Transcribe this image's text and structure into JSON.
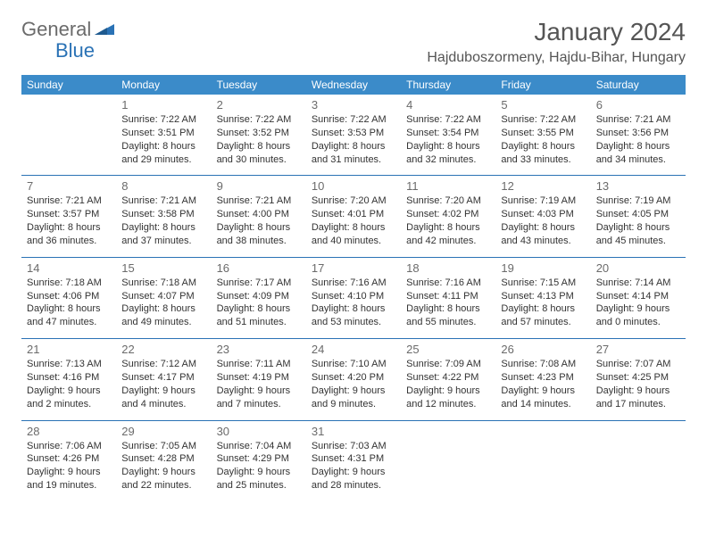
{
  "logo": {
    "gray": "General",
    "blue": "Blue"
  },
  "title": "January 2024",
  "location": "Hajduboszormeny, Hajdu-Bihar, Hungary",
  "header_bg": "#3b8bc9",
  "border_color": "#2a72b5",
  "weekdays": [
    "Sunday",
    "Monday",
    "Tuesday",
    "Wednesday",
    "Thursday",
    "Friday",
    "Saturday"
  ],
  "weeks": [
    [
      null,
      {
        "n": "1",
        "sr": "7:22 AM",
        "ss": "3:51 PM",
        "dl": "8 hours and 29 minutes."
      },
      {
        "n": "2",
        "sr": "7:22 AM",
        "ss": "3:52 PM",
        "dl": "8 hours and 30 minutes."
      },
      {
        "n": "3",
        "sr": "7:22 AM",
        "ss": "3:53 PM",
        "dl": "8 hours and 31 minutes."
      },
      {
        "n": "4",
        "sr": "7:22 AM",
        "ss": "3:54 PM",
        "dl": "8 hours and 32 minutes."
      },
      {
        "n": "5",
        "sr": "7:22 AM",
        "ss": "3:55 PM",
        "dl": "8 hours and 33 minutes."
      },
      {
        "n": "6",
        "sr": "7:21 AM",
        "ss": "3:56 PM",
        "dl": "8 hours and 34 minutes."
      }
    ],
    [
      {
        "n": "7",
        "sr": "7:21 AM",
        "ss": "3:57 PM",
        "dl": "8 hours and 36 minutes."
      },
      {
        "n": "8",
        "sr": "7:21 AM",
        "ss": "3:58 PM",
        "dl": "8 hours and 37 minutes."
      },
      {
        "n": "9",
        "sr": "7:21 AM",
        "ss": "4:00 PM",
        "dl": "8 hours and 38 minutes."
      },
      {
        "n": "10",
        "sr": "7:20 AM",
        "ss": "4:01 PM",
        "dl": "8 hours and 40 minutes."
      },
      {
        "n": "11",
        "sr": "7:20 AM",
        "ss": "4:02 PM",
        "dl": "8 hours and 42 minutes."
      },
      {
        "n": "12",
        "sr": "7:19 AM",
        "ss": "4:03 PM",
        "dl": "8 hours and 43 minutes."
      },
      {
        "n": "13",
        "sr": "7:19 AM",
        "ss": "4:05 PM",
        "dl": "8 hours and 45 minutes."
      }
    ],
    [
      {
        "n": "14",
        "sr": "7:18 AM",
        "ss": "4:06 PM",
        "dl": "8 hours and 47 minutes."
      },
      {
        "n": "15",
        "sr": "7:18 AM",
        "ss": "4:07 PM",
        "dl": "8 hours and 49 minutes."
      },
      {
        "n": "16",
        "sr": "7:17 AM",
        "ss": "4:09 PM",
        "dl": "8 hours and 51 minutes."
      },
      {
        "n": "17",
        "sr": "7:16 AM",
        "ss": "4:10 PM",
        "dl": "8 hours and 53 minutes."
      },
      {
        "n": "18",
        "sr": "7:16 AM",
        "ss": "4:11 PM",
        "dl": "8 hours and 55 minutes."
      },
      {
        "n": "19",
        "sr": "7:15 AM",
        "ss": "4:13 PM",
        "dl": "8 hours and 57 minutes."
      },
      {
        "n": "20",
        "sr": "7:14 AM",
        "ss": "4:14 PM",
        "dl": "9 hours and 0 minutes."
      }
    ],
    [
      {
        "n": "21",
        "sr": "7:13 AM",
        "ss": "4:16 PM",
        "dl": "9 hours and 2 minutes."
      },
      {
        "n": "22",
        "sr": "7:12 AM",
        "ss": "4:17 PM",
        "dl": "9 hours and 4 minutes."
      },
      {
        "n": "23",
        "sr": "7:11 AM",
        "ss": "4:19 PM",
        "dl": "9 hours and 7 minutes."
      },
      {
        "n": "24",
        "sr": "7:10 AM",
        "ss": "4:20 PM",
        "dl": "9 hours and 9 minutes."
      },
      {
        "n": "25",
        "sr": "7:09 AM",
        "ss": "4:22 PM",
        "dl": "9 hours and 12 minutes."
      },
      {
        "n": "26",
        "sr": "7:08 AM",
        "ss": "4:23 PM",
        "dl": "9 hours and 14 minutes."
      },
      {
        "n": "27",
        "sr": "7:07 AM",
        "ss": "4:25 PM",
        "dl": "9 hours and 17 minutes."
      }
    ],
    [
      {
        "n": "28",
        "sr": "7:06 AM",
        "ss": "4:26 PM",
        "dl": "9 hours and 19 minutes."
      },
      {
        "n": "29",
        "sr": "7:05 AM",
        "ss": "4:28 PM",
        "dl": "9 hours and 22 minutes."
      },
      {
        "n": "30",
        "sr": "7:04 AM",
        "ss": "4:29 PM",
        "dl": "9 hours and 25 minutes."
      },
      {
        "n": "31",
        "sr": "7:03 AM",
        "ss": "4:31 PM",
        "dl": "9 hours and 28 minutes."
      },
      null,
      null,
      null
    ]
  ]
}
